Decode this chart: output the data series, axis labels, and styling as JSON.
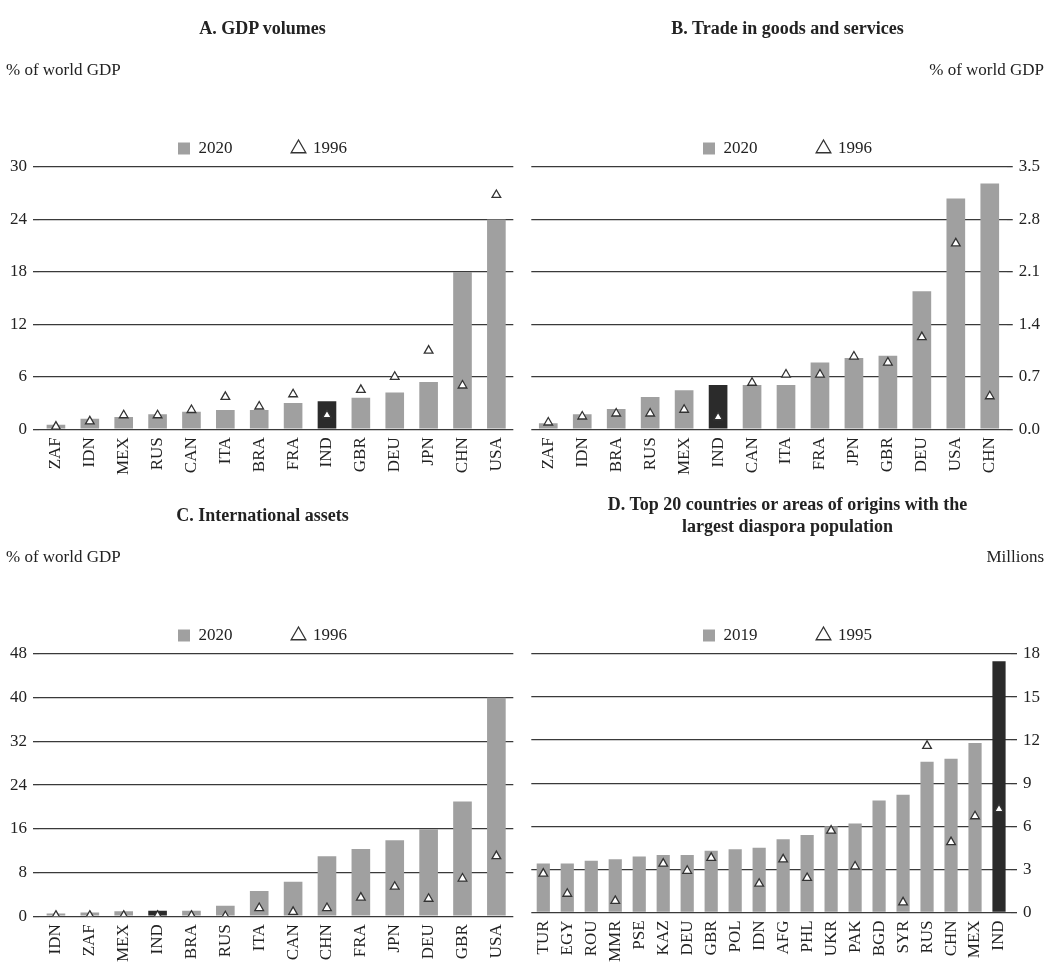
{
  "chart_data": [
    {
      "type": "bar",
      "title": "A. GDP volumes",
      "ylabel": "% of world GDP",
      "categories": [
        "ZAF",
        "IDN",
        "MEX",
        "RUS",
        "CAN",
        "ITA",
        "BRA",
        "FRA",
        "IND",
        "GBR",
        "DEU",
        "JPN",
        "CHN",
        "USA"
      ],
      "series": [
        {
          "name": "2020",
          "color": "#a0a0a0",
          "colors": [
            "#a0a0a0",
            "#a0a0a0",
            "#a0a0a0",
            "#a0a0a0",
            "#a0a0a0",
            "#a0a0a0",
            "#a0a0a0",
            "#a0a0a0",
            "#2b2b2b",
            "#a0a0a0",
            "#a0a0a0",
            "#a0a0a0",
            "#a0a0a0",
            "#a0a0a0"
          ],
          "values": [
            0.5,
            1.2,
            1.4,
            1.7,
            2.0,
            2.2,
            2.2,
            3.0,
            3.2,
            3.6,
            4.2,
            5.4,
            18.0,
            24.0
          ]
        },
        {
          "name": "1996",
          "type": "scatter",
          "color": "#333333",
          "values": [
            0.3,
            0.9,
            1.6,
            1.6,
            2.2,
            3.7,
            2.6,
            4.0,
            1.6,
            4.5,
            6.0,
            9.0,
            5.0,
            26.8
          ]
        }
      ],
      "ylim": [
        0,
        30
      ],
      "yticks": [
        0,
        6,
        12,
        18,
        24,
        30
      ],
      "grid": "y",
      "legend": "top",
      "marker": "triangle"
    },
    {
      "type": "bar",
      "title": "B. Trade in goods and services",
      "y2label": "% of world GDP",
      "categories": [
        "ZAF",
        "IDN",
        "BRA",
        "RUS",
        "MEX",
        "IND",
        "CAN",
        "ITA",
        "FRA",
        "JPN",
        "GBR",
        "DEU",
        "USA",
        "CHN"
      ],
      "series": [
        {
          "name": "2020",
          "axis": "y2",
          "color": "#a0a0a0",
          "colors": [
            "#a0a0a0",
            "#a0a0a0",
            "#a0a0a0",
            "#a0a0a0",
            "#a0a0a0",
            "#2b2b2b",
            "#a0a0a0",
            "#a0a0a0",
            "#a0a0a0",
            "#a0a0a0",
            "#a0a0a0",
            "#a0a0a0",
            "#a0a0a0",
            "#a0a0a0"
          ],
          "values": [
            0.08,
            0.2,
            0.27,
            0.43,
            0.52,
            0.59,
            0.59,
            0.59,
            0.89,
            0.95,
            0.98,
            1.84,
            3.08,
            3.28
          ]
        },
        {
          "name": "1996",
          "type": "scatter",
          "axis": "y2",
          "color": "#333333",
          "values": [
            0.09,
            0.17,
            0.21,
            0.21,
            0.26,
            0.16,
            0.62,
            0.73,
            0.73,
            0.97,
            0.89,
            1.23,
            2.48,
            0.44
          ]
        }
      ],
      "y2lim": [
        0,
        3.5
      ],
      "y2ticks": [
        {
          "value": 0,
          "label": "0.0"
        },
        0.7,
        1.4,
        2.1,
        2.8,
        3.5
      ],
      "grid": "y",
      "legend": "top",
      "marker": "triangle"
    },
    {
      "type": "bar",
      "title": "C. International assets",
      "ylabel": "% of world GDP",
      "categories": [
        "IDN",
        "ZAF",
        "MEX",
        "IND",
        "BRA",
        "RUS",
        "ITA",
        "CAN",
        "CHN",
        "FRA",
        "JPN",
        "DEU",
        "GBR",
        "USA"
      ],
      "series": [
        {
          "name": "2020",
          "color": "#a0a0a0",
          "colors": [
            "#a0a0a0",
            "#a0a0a0",
            "#a0a0a0",
            "#2b2b2b",
            "#a0a0a0",
            "#a0a0a0",
            "#a0a0a0",
            "#a0a0a0",
            "#a0a0a0",
            "#a0a0a0",
            "#a0a0a0",
            "#a0a0a0",
            "#a0a0a0",
            "#a0a0a0"
          ],
          "values": [
            0.5,
            0.7,
            0.9,
            1.0,
            1.0,
            1.9,
            4.6,
            6.3,
            11.0,
            12.3,
            13.9,
            15.9,
            21.0,
            40.0
          ]
        },
        {
          "name": "1996",
          "type": "scatter",
          "color": "#333333",
          "values": [
            0.1,
            0.1,
            0.1,
            0.1,
            0.1,
            0.0,
            1.5,
            0.8,
            1.5,
            3.4,
            5.4,
            3.2,
            6.9,
            11.0
          ]
        }
      ],
      "ylim": [
        0,
        48
      ],
      "yticks": [
        0,
        8,
        16,
        24,
        32,
        40,
        48
      ],
      "grid": "y",
      "legend": "top",
      "marker": "triangle"
    },
    {
      "type": "bar",
      "title": "D. Top 20 countries or areas of origins with the largest diaspora population",
      "y2label": "Millions",
      "categories": [
        "TUR",
        "EGY",
        "ROU",
        "MMR",
        "PSE",
        "KAZ",
        "DEU",
        "GBR",
        "POL",
        "IDN",
        "AFG",
        "PHL",
        "UKR",
        "PAK",
        "BGD",
        "SYR",
        "RUS",
        "CHN",
        "MEX",
        "IND"
      ],
      "series": [
        {
          "name": "2019",
          "axis": "y2",
          "color": "#a0a0a0",
          "colors": [
            "#a0a0a0",
            "#a0a0a0",
            "#a0a0a0",
            "#a0a0a0",
            "#a0a0a0",
            "#a0a0a0",
            "#a0a0a0",
            "#a0a0a0",
            "#a0a0a0",
            "#a0a0a0",
            "#a0a0a0",
            "#a0a0a0",
            "#a0a0a0",
            "#a0a0a0",
            "#a0a0a0",
            "#a0a0a0",
            "#a0a0a0",
            "#a0a0a0",
            "#a0a0a0",
            "#2b2b2b"
          ],
          "values": [
            3.4,
            3.4,
            3.6,
            3.7,
            3.9,
            4.0,
            4.0,
            4.3,
            4.4,
            4.5,
            5.1,
            5.4,
            6.0,
            6.2,
            7.8,
            8.2,
            10.5,
            10.7,
            11.8,
            17.5
          ]
        },
        {
          "name": "1995",
          "type": "scatter",
          "axis": "y2",
          "color": "#333333",
          "values": [
            2.7,
            1.3,
            null,
            0.8,
            null,
            3.4,
            2.9,
            3.8,
            null,
            2.0,
            3.7,
            2.4,
            5.7,
            3.2,
            null,
            0.7,
            11.6,
            4.9,
            6.7,
            7.2
          ]
        }
      ],
      "y2lim": [
        0,
        18
      ],
      "y2ticks": [
        0,
        3,
        6,
        9,
        12,
        15,
        18
      ],
      "grid": "y",
      "legend": "top",
      "marker": "triangle"
    }
  ]
}
